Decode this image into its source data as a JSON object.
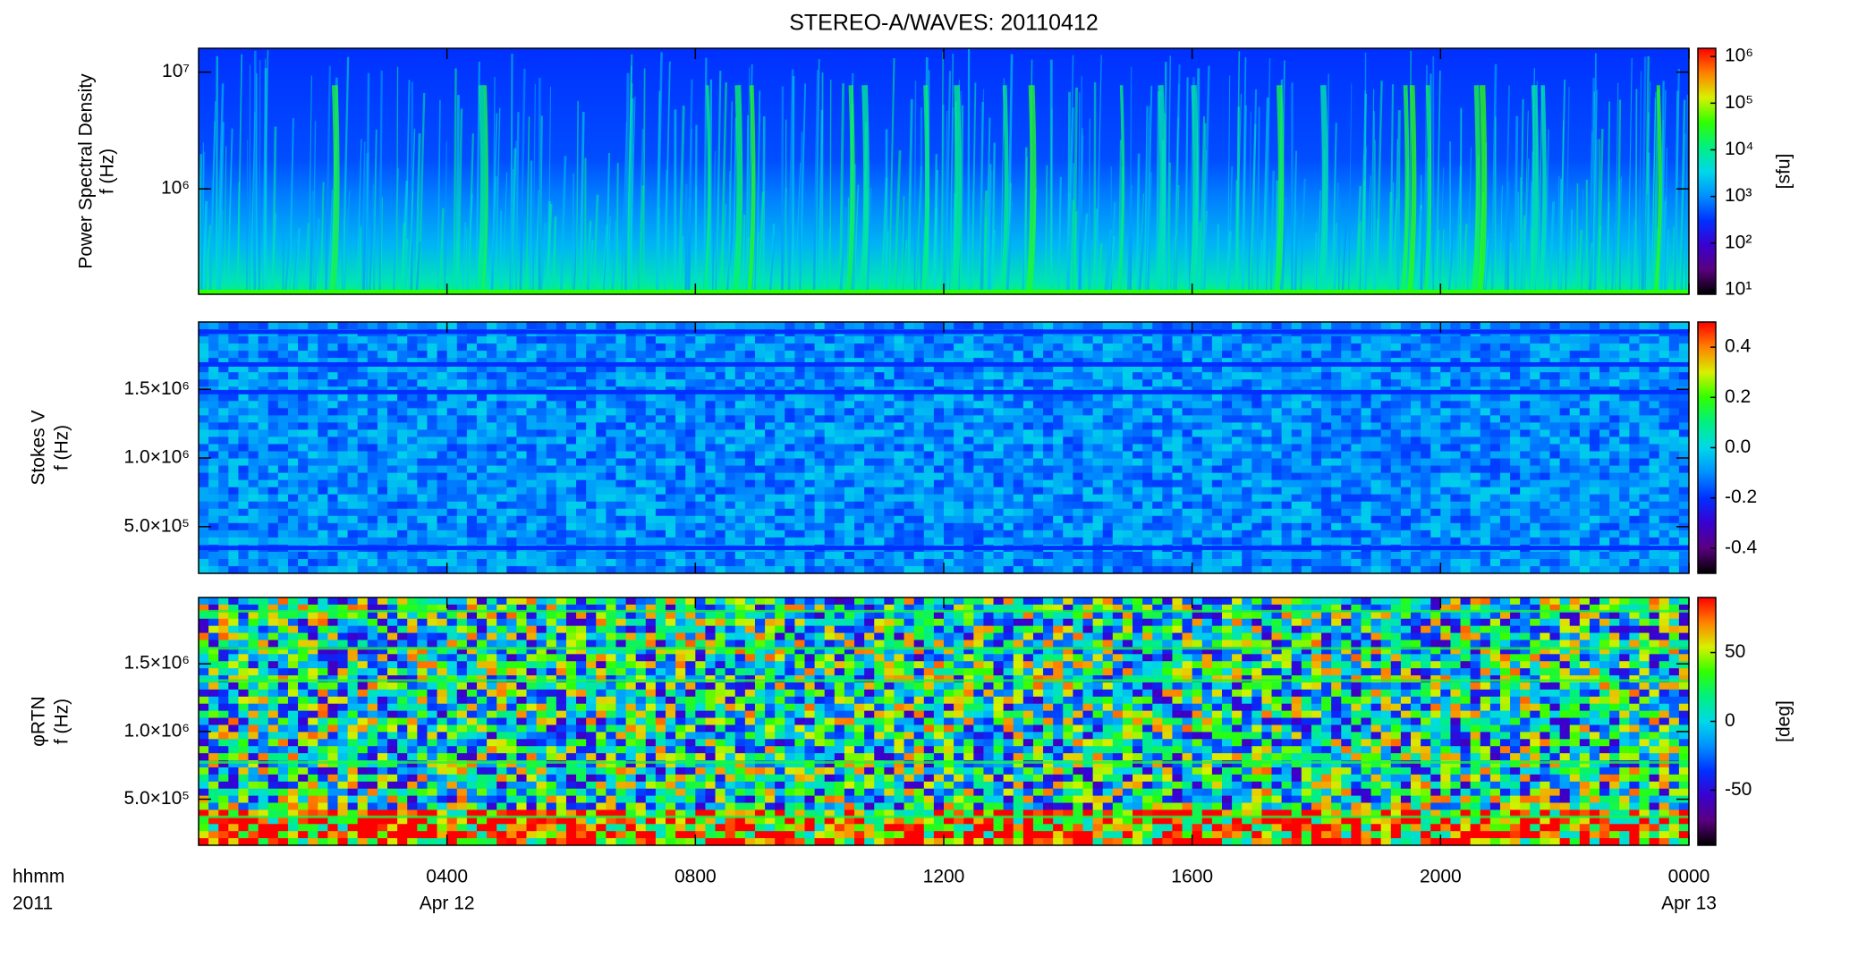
{
  "figure": {
    "title": "STEREO-A/WAVES: 20110412",
    "xlabel": "hhmm",
    "year_label": "2011",
    "xlim": [
      0,
      24
    ],
    "xticks": [
      {
        "value": 4,
        "label": "0400"
      },
      {
        "value": 8,
        "label": "0800"
      },
      {
        "value": 12,
        "label": "1200"
      },
      {
        "value": 16,
        "label": "1600"
      },
      {
        "value": 20,
        "label": "2000"
      },
      {
        "value": 24,
        "label": "0000"
      }
    ],
    "xtick_dates": [
      {
        "value": 4,
        "label": "Apr 12"
      },
      {
        "value": 24,
        "label": "Apr 13"
      }
    ],
    "colormap": [
      "#000000",
      "#5a0080",
      "#3a00d0",
      "#0030ff",
      "#0090ff",
      "#00d8e8",
      "#00f080",
      "#30ff00",
      "#d8f000",
      "#ff8000",
      "#ff0000"
    ]
  },
  "chart_data": [
    {
      "type": "spectrogram",
      "ylabel": [
        "Power Spectral Density",
        "f (Hz)"
      ],
      "ylog": true,
      "ylim": [
        125000,
        16000000
      ],
      "yticks": [
        {
          "value": 1000000,
          "label": "10⁶"
        },
        {
          "value": 10000000,
          "label": "10⁷"
        }
      ],
      "cbar_label": "[sfu]",
      "cbar_log": true,
      "cbar_lim": [
        8,
        1500000
      ],
      "cbar_ticks": [
        {
          "value": 10,
          "label": "10¹"
        },
        {
          "value": 100,
          "label": "10²"
        },
        {
          "value": 1000,
          "label": "10³"
        },
        {
          "value": 10000,
          "label": "10⁴"
        },
        {
          "value": 100000,
          "label": "10⁵"
        },
        {
          "value": 1000000,
          "label": "10⁶"
        }
      ]
    },
    {
      "type": "spectrogram",
      "ylabel": [
        "Stokes V",
        "f (Hz)"
      ],
      "ylog": false,
      "ylim": [
        160000,
        1990000
      ],
      "yticks": [
        {
          "value": 500000,
          "label": "5.0×10⁵"
        },
        {
          "value": 1000000,
          "label": "1.0×10⁶"
        },
        {
          "value": 1500000,
          "label": "1.5×10⁶"
        }
      ],
      "cbar_log": false,
      "cbar_lim": [
        -0.5,
        0.5
      ],
      "cbar_ticks": [
        -0.4,
        -0.2,
        {
          "value": 0,
          "label": "0.0"
        },
        0.2,
        0.4
      ]
    },
    {
      "type": "spectrogram",
      "ylabel": [
        "φRTN",
        "f (Hz)"
      ],
      "ylog": false,
      "ylim": [
        160000,
        1990000
      ],
      "yticks": [
        {
          "value": 500000,
          "label": "5.0×10⁵"
        },
        {
          "value": 1000000,
          "label": "1.0×10⁶"
        },
        {
          "value": 1500000,
          "label": "1.5×10⁶"
        }
      ],
      "cbar_label": "[deg]",
      "cbar_log": false,
      "cbar_lim": [
        -90,
        90
      ],
      "cbar_ticks": [
        -50,
        0,
        50
      ]
    }
  ]
}
